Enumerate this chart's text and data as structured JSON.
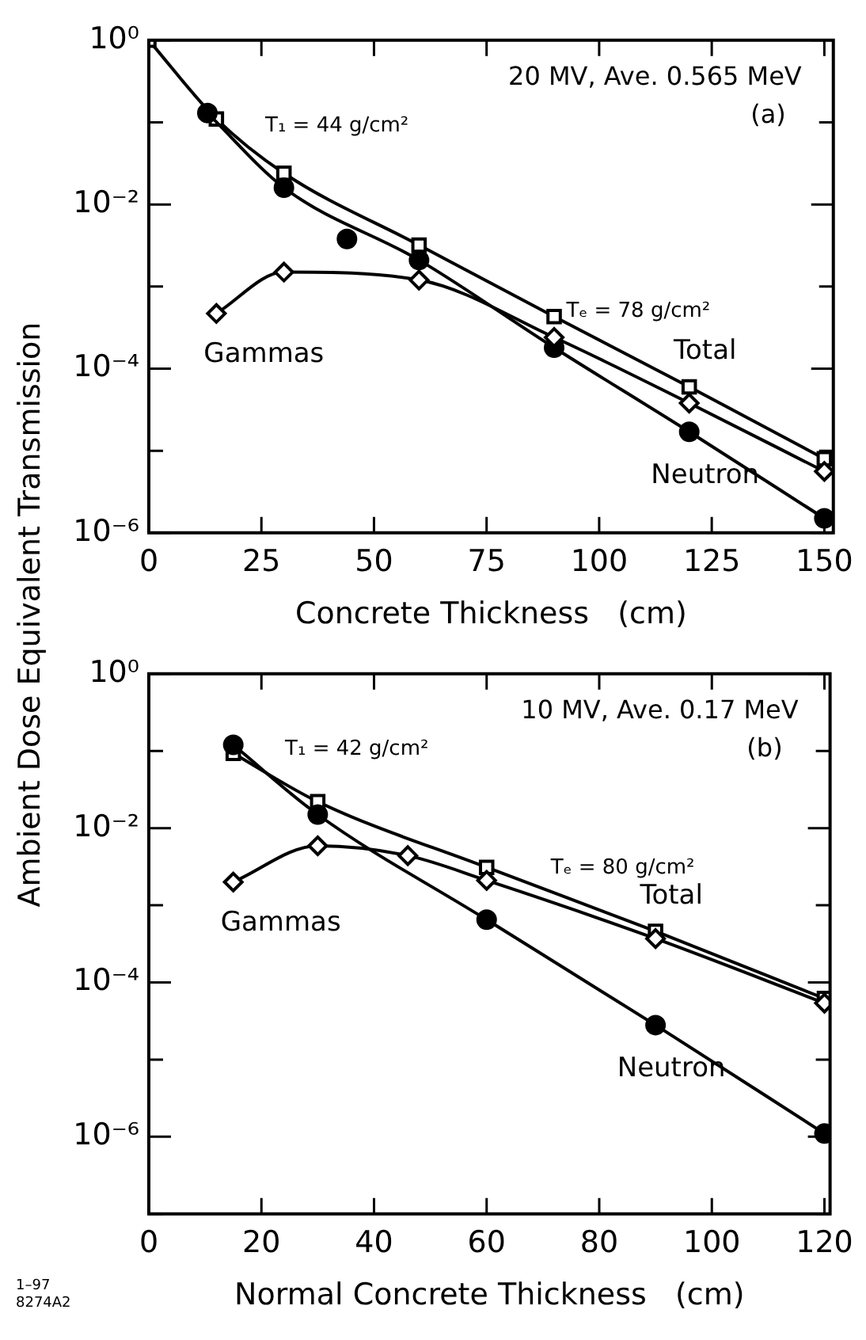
{
  "chart_data": [
    {
      "type": "line",
      "xlabel": "Concrete Thickness   (cm)",
      "ylabel": "Ambient Dose Equivalent Transmission",
      "log": "y",
      "grid": false,
      "legend": false,
      "xlim": [
        0,
        152
      ],
      "xticks": [
        0,
        25,
        50,
        75,
        100,
        125,
        150
      ],
      "ylim": [
        1e-06,
        1
      ],
      "yticks": [
        {
          "value": 1,
          "label": "10⁰"
        },
        {
          "value": 0.1,
          "label": null
        },
        {
          "value": 0.01,
          "label": "10⁻²"
        },
        {
          "value": 0.001,
          "label": null
        },
        {
          "value": 0.0001,
          "label": "10⁻⁴"
        },
        {
          "value": 1e-05,
          "label": null
        },
        {
          "value": 1e-06,
          "label": "10⁻⁶"
        }
      ],
      "annotations": [
        "20 MV, Ave. 0.565 MeV",
        "(a)",
        "T₁ = 44 g/cm²",
        "Tₑ = 78 g/cm²"
      ],
      "series": [
        {
          "name": "Total",
          "color": "#000000",
          "marker": "square",
          "x": [
            0,
            15,
            30,
            60,
            90,
            120,
            150
          ],
          "values": [
            1,
            0.11,
            0.024,
            0.0032,
            0.00043,
            6e-05,
            8e-06
          ]
        },
        {
          "name": "Neutron",
          "color": "#000000",
          "marker": "circle",
          "x": [
            13,
            30,
            60,
            90,
            120,
            150
          ],
          "values": [
            0.13,
            0.016,
            0.0021,
            0.00018,
            1.7e-05,
            1.5e-06
          ]
        },
        {
          "type": "scatter",
          "color": "#000000",
          "marker": "circle",
          "x": [
            44
          ],
          "values": [
            0.0038
          ]
        },
        {
          "name": "Gammas",
          "color": "#000000",
          "marker": "diamond",
          "x": [
            15,
            30,
            60,
            90,
            120,
            150
          ],
          "values": [
            0.00047,
            0.0015,
            0.0012,
            0.00024,
            3.8e-05,
            5.6e-06
          ]
        }
      ]
    },
    {
      "type": "line",
      "xlabel": "Normal Concrete Thickness   (cm)",
      "log": "y",
      "grid": false,
      "legend": false,
      "xlim": [
        0,
        121
      ],
      "xticks": [
        0,
        20,
        40,
        60,
        80,
        100,
        120
      ],
      "ylim": [
        1e-07,
        1
      ],
      "yticks": [
        {
          "value": 1,
          "label": "10⁰"
        },
        {
          "value": 0.1,
          "label": null
        },
        {
          "value": 0.01,
          "label": "10⁻²"
        },
        {
          "value": 0.001,
          "label": null
        },
        {
          "value": 0.0001,
          "label": "10⁻⁴"
        },
        {
          "value": 1e-05,
          "label": null
        },
        {
          "value": 1e-06,
          "label": "10⁻⁶"
        },
        {
          "value": 1e-07,
          "label": null
        }
      ],
      "annotations": [
        "10 MV, Ave. 0.17 MeV",
        "(b)",
        "T₁ = 42 g/cm²",
        "Tₑ = 80 g/cm²",
        "1–97",
        "8274A2"
      ],
      "series": [
        {
          "name": "Total",
          "color": "#000000",
          "marker": "square",
          "x": [
            15,
            30,
            60,
            90,
            120
          ],
          "values": [
            0.093,
            0.022,
            0.0031,
            0.00046,
            6.2e-05
          ]
        },
        {
          "name": "Neutron",
          "color": "#000000",
          "marker": "circle",
          "x": [
            15,
            30,
            60,
            90,
            120
          ],
          "values": [
            0.12,
            0.015,
            0.00065,
            2.8e-05,
            1.1e-06
          ]
        },
        {
          "name": "Gammas",
          "color": "#000000",
          "marker": "diamond",
          "x": [
            15,
            30,
            46,
            60,
            90,
            120
          ],
          "values": [
            0.002,
            0.0059,
            0.0044,
            0.0021,
            0.00037,
            5.4e-05
          ]
        }
      ]
    }
  ]
}
